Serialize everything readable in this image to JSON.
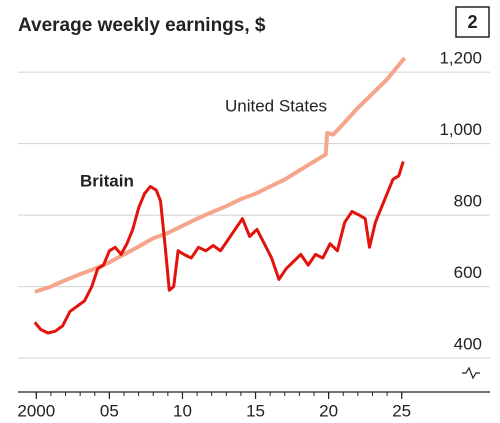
{
  "chart_data": {
    "type": "line",
    "title": "Average weekly earnings, $",
    "panel_label": "2",
    "xlim": [
      1999.5,
      2025.5
    ],
    "xticks": [
      {
        "value": 2000,
        "label": "2000"
      },
      {
        "value": 2005,
        "label": "05"
      },
      {
        "value": 2010,
        "label": "10"
      },
      {
        "value": 2015,
        "label": "15"
      },
      {
        "value": 2020,
        "label": "20"
      },
      {
        "value": 2025,
        "label": "25"
      }
    ],
    "ylim": [
      305,
      1290
    ],
    "yticks": [
      400,
      600,
      800,
      {
        "value": 1000,
        "label": "1,000"
      },
      {
        "value": 1200,
        "label": "1,200"
      }
    ],
    "grid": true,
    "series": [
      {
        "name": "United States",
        "color": "#f4a58a",
        "x": [
          1999.9,
          2001,
          2002,
          2003,
          2004,
          2005,
          2006,
          2007,
          2008,
          2009,
          2010,
          2011,
          2012,
          2013,
          2014,
          2015,
          2016,
          2017,
          2018,
          2019,
          2019.8,
          2019.9,
          2020.3,
          2021,
          2022,
          2023,
          2024,
          2025.2
        ],
        "values": [
          585,
          600,
          618,
          635,
          650,
          668,
          690,
          712,
          735,
          750,
          770,
          790,
          808,
          825,
          845,
          860,
          880,
          900,
          925,
          950,
          970,
          1030,
          1025,
          1055,
          1100,
          1140,
          1180,
          1240
        ]
      },
      {
        "name": "Britain",
        "color": "#e3120b",
        "x": [
          1999.9,
          2000.3,
          2000.8,
          2001.3,
          2001.8,
          2002.3,
          2002.8,
          2003.3,
          2003.8,
          2004.2,
          2004.6,
          2005.0,
          2005.4,
          2005.8,
          2006.2,
          2006.6,
          2007.0,
          2007.4,
          2007.8,
          2008.2,
          2008.5,
          2008.8,
          2009.1,
          2009.4,
          2009.7,
          2010.1,
          2010.6,
          2011.1,
          2011.6,
          2012.1,
          2012.6,
          2013.1,
          2013.6,
          2014.1,
          2014.6,
          2015.1,
          2015.6,
          2016.1,
          2016.6,
          2017.1,
          2017.6,
          2018.1,
          2018.6,
          2019.1,
          2019.6,
          2020.1,
          2020.6,
          2021.1,
          2021.6,
          2022.1,
          2022.5,
          2022.8,
          2023.2,
          2023.6,
          2024.0,
          2024.4,
          2024.8,
          2025.1
        ],
        "values": [
          500,
          480,
          470,
          475,
          490,
          530,
          545,
          560,
          600,
          650,
          660,
          700,
          710,
          690,
          720,
          760,
          820,
          860,
          880,
          870,
          840,
          720,
          590,
          600,
          700,
          690,
          680,
          710,
          700,
          715,
          700,
          730,
          760,
          790,
          740,
          760,
          720,
          680,
          620,
          650,
          670,
          690,
          660,
          690,
          680,
          720,
          700,
          780,
          810,
          800,
          790,
          710,
          780,
          820,
          860,
          900,
          910,
          950
        ]
      }
    ]
  }
}
